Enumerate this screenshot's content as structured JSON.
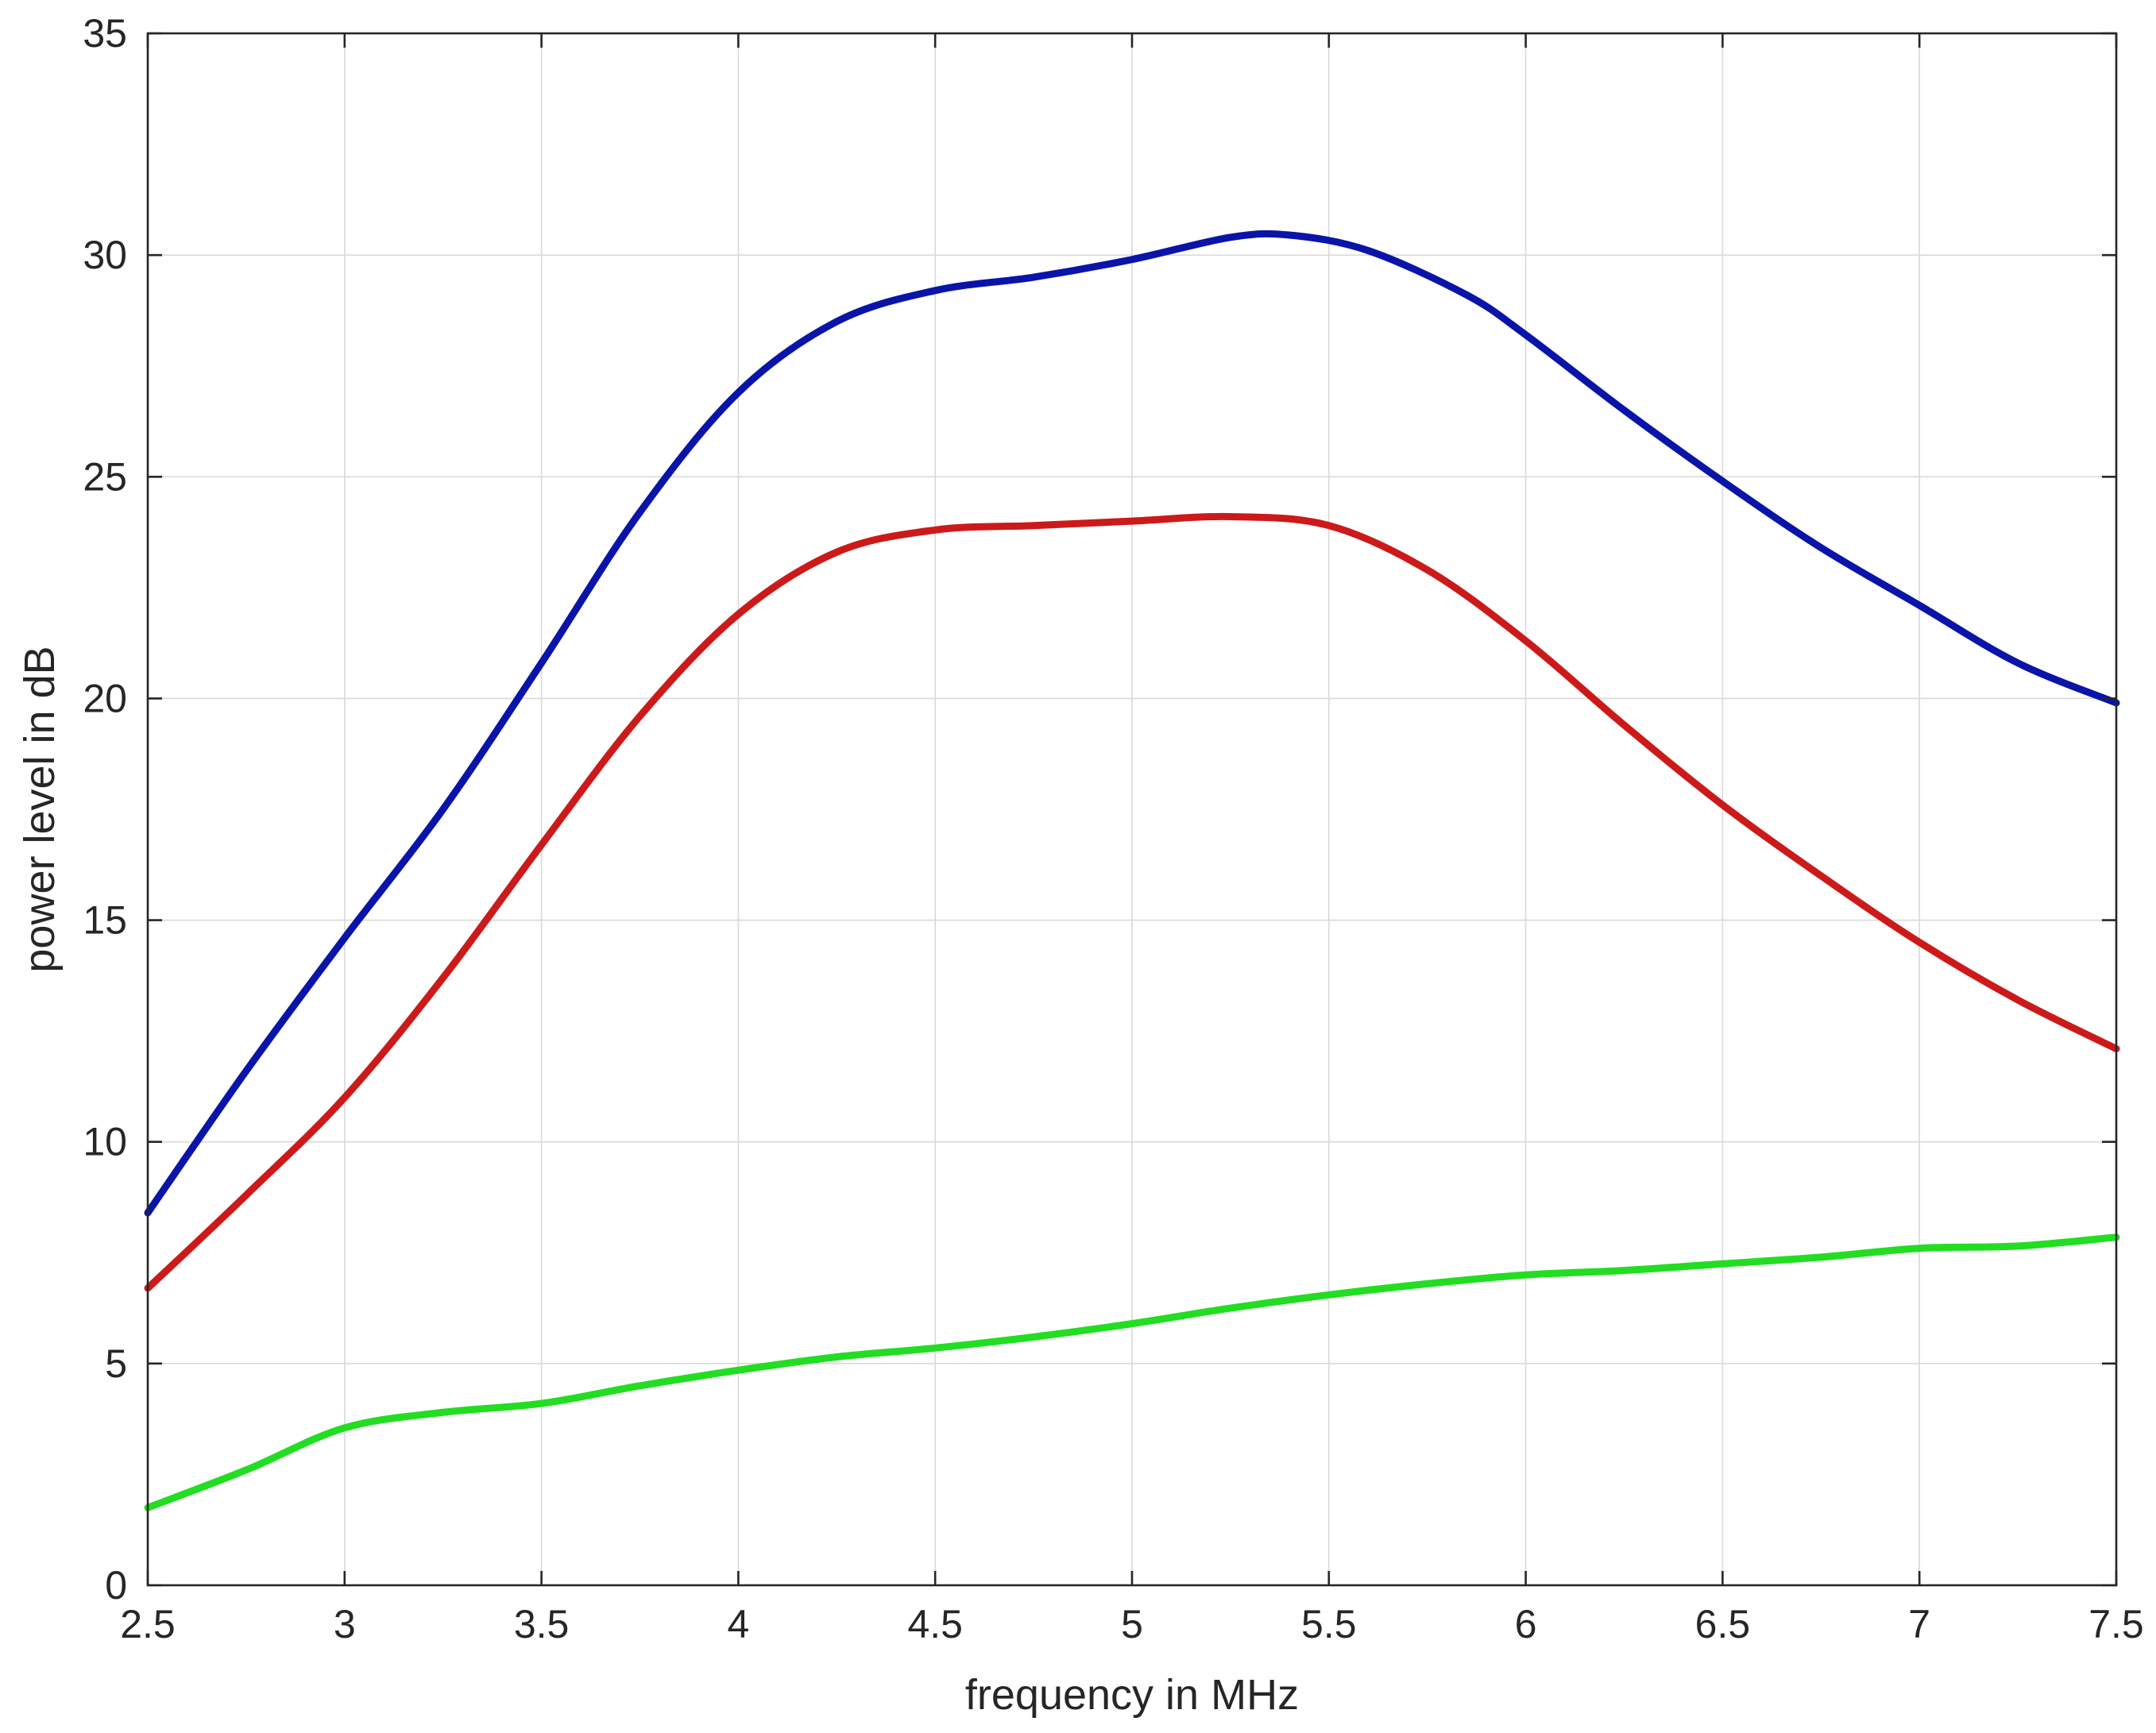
{
  "chart_data": {
    "type": "line",
    "title": "",
    "xlabel": "frequency in MHz",
    "ylabel": "power level in dB",
    "xlim": [
      2.5,
      7.5
    ],
    "ylim": [
      0,
      35
    ],
    "xticks": [
      2.5,
      3,
      3.5,
      4,
      4.5,
      5,
      5.5,
      6,
      6.5,
      7,
      7.5
    ],
    "xtick_labels": [
      "2.5",
      "3",
      "3.5",
      "4",
      "4.5",
      "5",
      "5.5",
      "6",
      "6.5",
      "7",
      "7.5"
    ],
    "yticks": [
      0,
      5,
      10,
      15,
      20,
      25,
      30,
      35
    ],
    "ytick_labels": [
      "0",
      "5",
      "10",
      "15",
      "20",
      "25",
      "30",
      "35"
    ],
    "grid": true,
    "legend": "none",
    "series": [
      {
        "color": "#0a14a8",
        "x": [
          2.5,
          2.75,
          3.0,
          3.25,
          3.5,
          3.75,
          4.0,
          4.25,
          4.5,
          4.75,
          5.0,
          5.25,
          5.4,
          5.6,
          5.85,
          6.0,
          6.25,
          6.5,
          6.75,
          7.0,
          7.25,
          7.5
        ],
        "y": [
          8.4,
          11.6,
          14.6,
          17.5,
          20.8,
          24.2,
          26.9,
          28.5,
          29.2,
          29.5,
          29.9,
          30.4,
          30.45,
          30.1,
          29.1,
          28.2,
          26.5,
          24.9,
          23.4,
          22.1,
          20.8,
          19.9
        ]
      },
      {
        "color": "#cc1a1a",
        "x": [
          2.5,
          2.75,
          3.0,
          3.25,
          3.5,
          3.75,
          4.0,
          4.25,
          4.5,
          4.75,
          5.0,
          5.25,
          5.5,
          5.75,
          6.0,
          6.25,
          6.5,
          6.75,
          7.0,
          7.25,
          7.5
        ],
        "y": [
          6.7,
          8.8,
          11.0,
          13.7,
          16.7,
          19.6,
          21.9,
          23.3,
          23.8,
          23.9,
          24.0,
          24.1,
          23.9,
          22.9,
          21.3,
          19.4,
          17.6,
          16.0,
          14.5,
          13.2,
          12.1
        ]
      },
      {
        "color": "#22dd22",
        "x": [
          2.5,
          2.75,
          3.0,
          3.25,
          3.5,
          3.75,
          4.0,
          4.25,
          4.5,
          4.75,
          5.0,
          5.25,
          5.5,
          5.75,
          6.0,
          6.25,
          6.5,
          6.75,
          7.0,
          7.25,
          7.5
        ],
        "y": [
          1.75,
          2.6,
          3.55,
          3.9,
          4.1,
          4.5,
          4.85,
          5.15,
          5.35,
          5.6,
          5.9,
          6.25,
          6.55,
          6.8,
          7.0,
          7.1,
          7.25,
          7.4,
          7.6,
          7.65,
          7.85
        ]
      }
    ]
  }
}
